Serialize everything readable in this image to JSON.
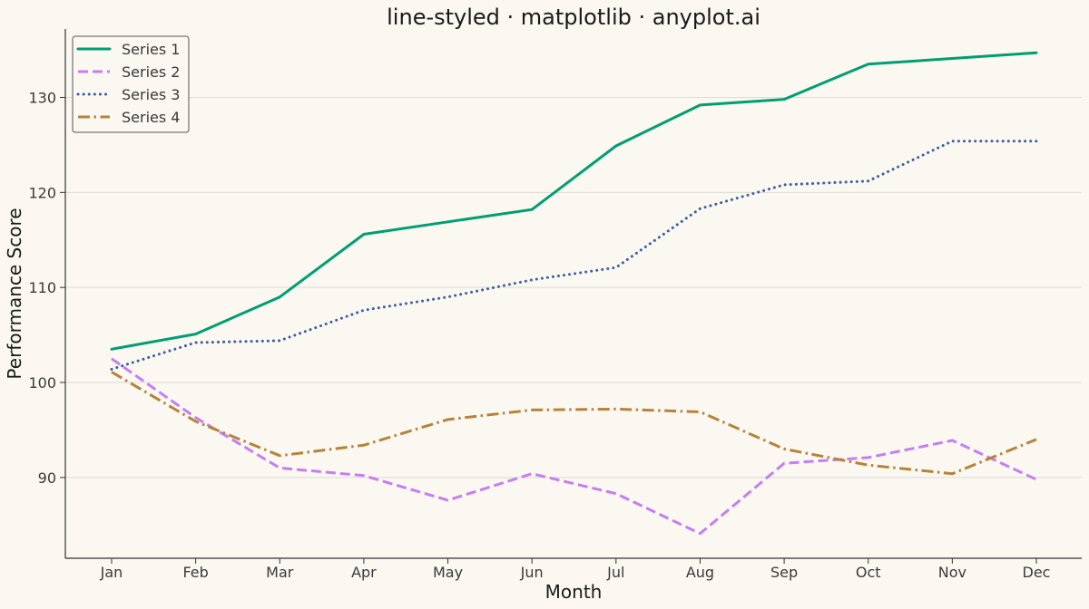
{
  "chart_data": {
    "type": "line",
    "title": "line-styled · matplotlib · anyplot.ai",
    "xlabel": "Month",
    "ylabel": "Performance Score",
    "categories": [
      "Jan",
      "Feb",
      "Mar",
      "Apr",
      "May",
      "Jun",
      "Jul",
      "Aug",
      "Sep",
      "Oct",
      "Nov",
      "Dec"
    ],
    "ylim": [
      81.5,
      137.2
    ],
    "yticks": [
      90,
      100,
      110,
      120,
      130
    ],
    "grid": "horizontal",
    "legend_position": "top-left",
    "series": [
      {
        "name": "Series 1",
        "style": "solid",
        "color": "#009E73",
        "values": [
          103.5,
          105.1,
          109.0,
          115.6,
          116.9,
          118.2,
          124.9,
          129.2,
          129.8,
          133.5,
          134.1,
          134.7
        ]
      },
      {
        "name": "Series 2",
        "style": "dashed",
        "color": "#C77DF3",
        "values": [
          102.5,
          96.3,
          91.0,
          90.2,
          87.6,
          90.4,
          88.3,
          84.1,
          91.5,
          92.1,
          93.9,
          89.8
        ]
      },
      {
        "name": "Series 3",
        "style": "dotted",
        "color": "#3D5FA0",
        "values": [
          101.4,
          104.2,
          104.4,
          107.6,
          109.0,
          110.8,
          112.1,
          118.3,
          120.8,
          121.2,
          125.4,
          125.4
        ]
      },
      {
        "name": "Series 4",
        "style": "dashdot",
        "color": "#B7833A",
        "values": [
          101.1,
          95.9,
          92.3,
          93.4,
          96.1,
          97.1,
          97.2,
          96.9,
          93.0,
          91.3,
          90.4,
          94.0
        ]
      }
    ]
  }
}
